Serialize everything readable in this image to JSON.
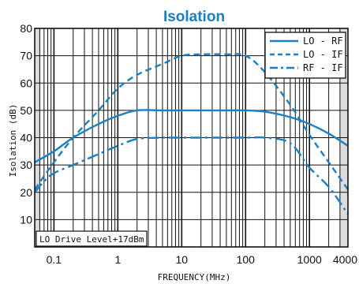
{
  "chart_data": {
    "type": "line",
    "title": "Isolation",
    "xlabel": "FREQUENCY(MHz)",
    "ylabel": "Isolation (dB)",
    "x_scale": "log",
    "xlim": [
      0.05,
      4000
    ],
    "ylim": [
      0,
      80
    ],
    "x_tick_labels": [
      "0.1",
      "1",
      "10",
      "100",
      "1000",
      "4000"
    ],
    "y_tick_labels": [
      "10",
      "20",
      "30",
      "40",
      "50",
      "60",
      "70",
      "80"
    ],
    "grid": true,
    "legend_position": "top-right",
    "annotation": "LO Drive Level+17dBm",
    "series": [
      {
        "name": "LO - RF",
        "style": "solid",
        "x": [
          0.05,
          0.1,
          0.2,
          0.5,
          1,
          2,
          5,
          10,
          50,
          100,
          200,
          500,
          1000,
          2000,
          4000
        ],
        "y": [
          31,
          35,
          40,
          45,
          48,
          50,
          50,
          50,
          50,
          50,
          49.5,
          47.5,
          45,
          41.5,
          37
        ]
      },
      {
        "name": "LO - IF",
        "style": "dashed",
        "x": [
          0.05,
          0.1,
          0.2,
          0.5,
          1,
          2,
          5,
          10,
          20,
          50,
          100,
          200,
          500,
          1000,
          2000,
          4000
        ],
        "y": [
          21,
          31,
          40,
          50,
          58,
          63,
          67,
          70,
          70.5,
          70.5,
          70,
          64,
          52,
          41,
          31,
          21
        ]
      },
      {
        "name": "RF - IF",
        "style": "dashdot",
        "x": [
          0.05,
          0.07,
          0.1,
          0.2,
          0.5,
          1,
          2,
          5,
          10,
          100,
          200,
          500,
          1000,
          2000,
          4000
        ],
        "y": [
          20,
          24,
          27,
          30,
          34,
          37,
          39.5,
          40,
          40,
          40,
          40,
          38,
          29,
          22,
          12
        ]
      }
    ],
    "colors": {
      "line": "#1a7fc4",
      "grid": "#111111",
      "edge_band": "#dcdcdc"
    }
  }
}
